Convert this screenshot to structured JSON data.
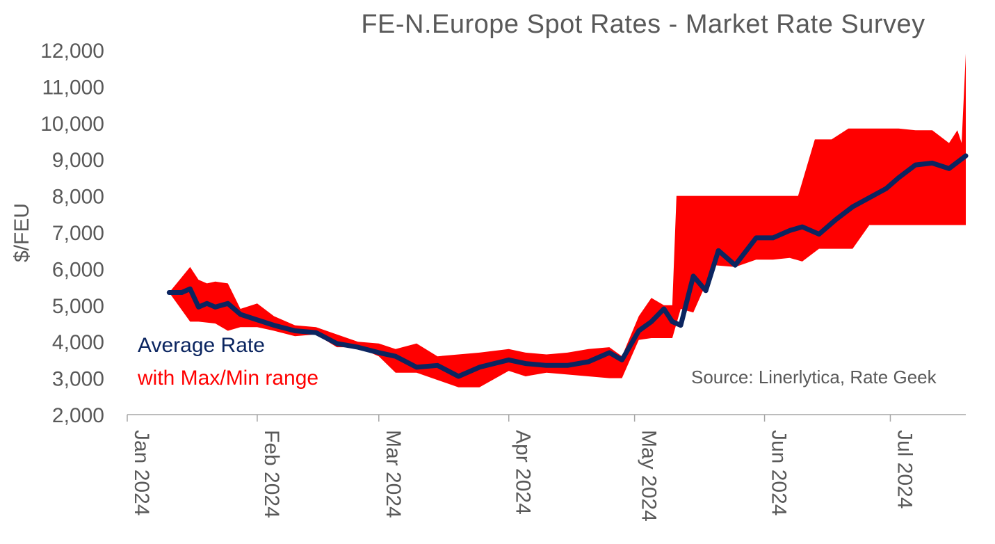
{
  "chart_data": {
    "type": "line",
    "title": "FE-N.Europe Spot Rates - Market Rate Survey",
    "ylabel": "$/FEU",
    "xlabel": "",
    "ylim": [
      2000,
      12000
    ],
    "yticks": [
      "2,000",
      "3,000",
      "4,000",
      "5,000",
      "6,000",
      "7,000",
      "8,000",
      "9,000",
      "10,000",
      "11,000",
      "12,000"
    ],
    "xticks": [
      "Jan 2024",
      "Feb 2024",
      "Mar 2024",
      "Apr 2024",
      "May 2024",
      "Jun 2024",
      "Jul 2024"
    ],
    "xlim": [
      "2024-01-01",
      "2024-07-19"
    ],
    "grid": false,
    "legend": {
      "average_label": "Average Rate",
      "range_label": "with Max/Min range",
      "placement": "bottom-left"
    },
    "annotation": "Source: Linerlytica, Rate Geek",
    "colors": {
      "average": "#0b2560",
      "range": "#ff0000",
      "text": "#595959"
    },
    "series": [
      {
        "name": "Average Rate",
        "x": [
          "2024-01-11",
          "2024-01-14",
          "2024-01-16",
          "2024-01-18",
          "2024-01-20",
          "2024-01-22",
          "2024-01-25",
          "2024-01-28",
          "2024-02-01",
          "2024-02-05",
          "2024-02-10",
          "2024-02-15",
          "2024-02-20",
          "2024-02-25",
          "2024-03-01",
          "2024-03-05",
          "2024-03-10",
          "2024-03-15",
          "2024-03-20",
          "2024-03-25",
          "2024-04-01",
          "2024-04-05",
          "2024-04-10",
          "2024-04-15",
          "2024-04-20",
          "2024-04-25",
          "2024-04-28",
          "2024-05-02",
          "2024-05-05",
          "2024-05-08",
          "2024-05-10",
          "2024-05-12",
          "2024-05-15",
          "2024-05-18",
          "2024-05-21",
          "2024-05-25",
          "2024-05-30",
          "2024-06-03",
          "2024-06-07",
          "2024-06-10",
          "2024-06-14",
          "2024-06-18",
          "2024-06-22",
          "2024-06-26",
          "2024-06-30",
          "2024-07-03",
          "2024-07-07",
          "2024-07-11",
          "2024-07-15",
          "2024-07-19"
        ],
        "values": [
          5350,
          5350,
          5450,
          4950,
          5050,
          4950,
          5050,
          4750,
          4600,
          4450,
          4300,
          4250,
          3950,
          3850,
          3700,
          3600,
          3300,
          3350,
          3050,
          3300,
          3500,
          3400,
          3350,
          3350,
          3450,
          3700,
          3500,
          4300,
          4550,
          4900,
          4550,
          4450,
          5800,
          5400,
          6500,
          6100,
          6850,
          6850,
          7050,
          7150,
          6950,
          7350,
          7700,
          7950,
          8200,
          8500,
          8850,
          8900,
          8750,
          9100
        ]
      },
      {
        "name": "Max",
        "x": [
          "2024-01-11",
          "2024-01-16",
          "2024-01-18",
          "2024-01-20",
          "2024-01-22",
          "2024-01-25",
          "2024-01-28",
          "2024-02-01",
          "2024-02-05",
          "2024-02-10",
          "2024-02-15",
          "2024-02-20",
          "2024-02-25",
          "2024-03-01",
          "2024-03-05",
          "2024-03-10",
          "2024-03-15",
          "2024-03-20",
          "2024-03-25",
          "2024-04-01",
          "2024-04-05",
          "2024-04-10",
          "2024-04-15",
          "2024-04-20",
          "2024-04-25",
          "2024-04-28",
          "2024-05-02",
          "2024-05-05",
          "2024-05-08",
          "2024-05-10",
          "2024-05-11",
          "2024-05-21",
          "2024-05-25",
          "2024-05-30",
          "2024-06-03",
          "2024-06-05",
          "2024-06-09",
          "2024-06-13",
          "2024-06-17",
          "2024-06-21",
          "2024-06-27",
          "2024-07-03",
          "2024-07-07",
          "2024-07-11",
          "2024-07-15",
          "2024-07-17",
          "2024-07-18",
          "2024-07-19"
        ],
        "values": [
          5350,
          6050,
          5700,
          5600,
          5650,
          5600,
          4900,
          5050,
          4700,
          4450,
          4400,
          4200,
          4000,
          3950,
          3800,
          3950,
          3600,
          3650,
          3700,
          3800,
          3700,
          3650,
          3700,
          3800,
          3850,
          3600,
          4700,
          5200,
          5000,
          5000,
          8000,
          8000,
          8000,
          8000,
          8000,
          8000,
          8000,
          9550,
          9550,
          9850,
          9850,
          9850,
          9800,
          9800,
          9450,
          9800,
          9450,
          11900
        ]
      },
      {
        "name": "Min",
        "x": [
          "2024-01-11",
          "2024-01-16",
          "2024-01-18",
          "2024-01-22",
          "2024-01-25",
          "2024-01-28",
          "2024-02-01",
          "2024-02-05",
          "2024-02-10",
          "2024-02-15",
          "2024-02-20",
          "2024-02-25",
          "2024-03-01",
          "2024-03-05",
          "2024-03-10",
          "2024-03-15",
          "2024-03-20",
          "2024-03-25",
          "2024-04-01",
          "2024-04-05",
          "2024-04-10",
          "2024-04-15",
          "2024-04-20",
          "2024-04-25",
          "2024-04-28",
          "2024-05-02",
          "2024-05-05",
          "2024-05-08",
          "2024-05-10",
          "2024-05-12",
          "2024-05-15",
          "2024-05-20",
          "2024-05-25",
          "2024-05-30",
          "2024-06-03",
          "2024-06-07",
          "2024-06-10",
          "2024-06-14",
          "2024-06-18",
          "2024-06-22",
          "2024-06-26",
          "2024-06-30",
          "2024-07-03",
          "2024-07-07",
          "2024-07-11",
          "2024-07-15",
          "2024-07-19"
        ],
        "values": [
          5350,
          4550,
          4550,
          4500,
          4300,
          4400,
          4400,
          4300,
          4150,
          4200,
          3850,
          3850,
          3600,
          3150,
          3150,
          2950,
          2750,
          2750,
          3200,
          3050,
          3150,
          3100,
          3050,
          3000,
          3000,
          4050,
          4100,
          4100,
          4100,
          4900,
          4800,
          6100,
          6050,
          6250,
          6250,
          6300,
          6200,
          6550,
          6550,
          6550,
          7200,
          7200,
          7200,
          7200,
          7200,
          7200,
          7200
        ]
      }
    ]
  }
}
